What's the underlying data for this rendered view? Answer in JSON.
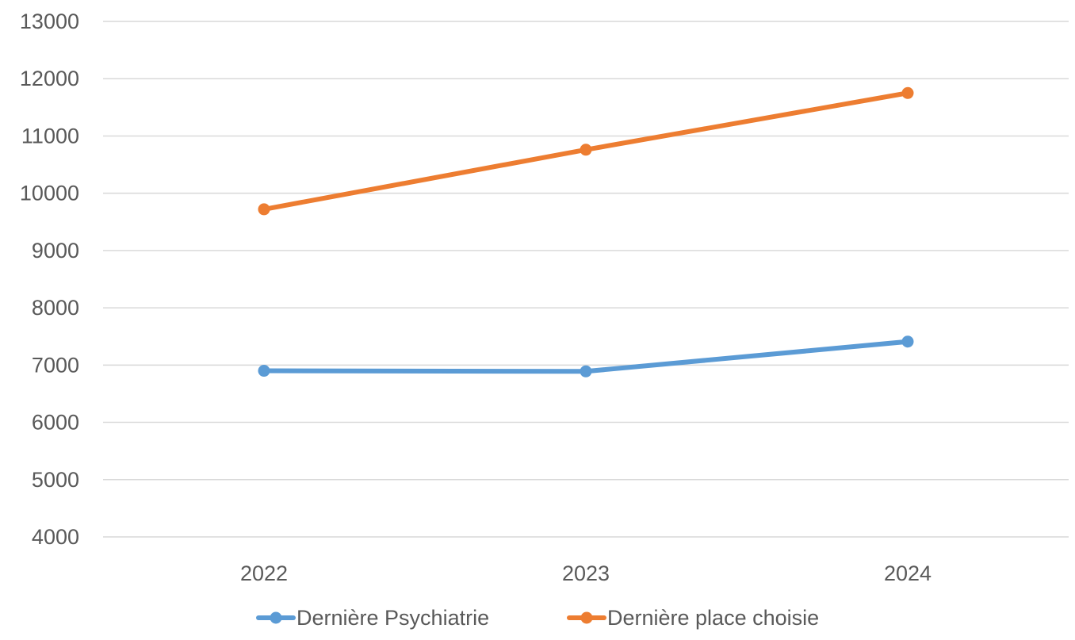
{
  "chart_data": {
    "type": "line",
    "title": "",
    "xlabel": "",
    "ylabel": "",
    "categories": [
      "2022",
      "2023",
      "2024"
    ],
    "ylim": [
      4000,
      13000
    ],
    "yticks": [
      "4000",
      "5000",
      "6000",
      "7000",
      "8000",
      "9000",
      "10000",
      "11000",
      "12000",
      "13000"
    ],
    "grid": true,
    "legend_position": "bottom",
    "series": [
      {
        "name": "Dernière Psychiatrie",
        "color": "#5B9BD5",
        "values": [
          6900,
          6890,
          7410
        ]
      },
      {
        "name": "Dernière place choisie",
        "color": "#ED7D31",
        "values": [
          9720,
          10760,
          11750
        ]
      }
    ]
  }
}
